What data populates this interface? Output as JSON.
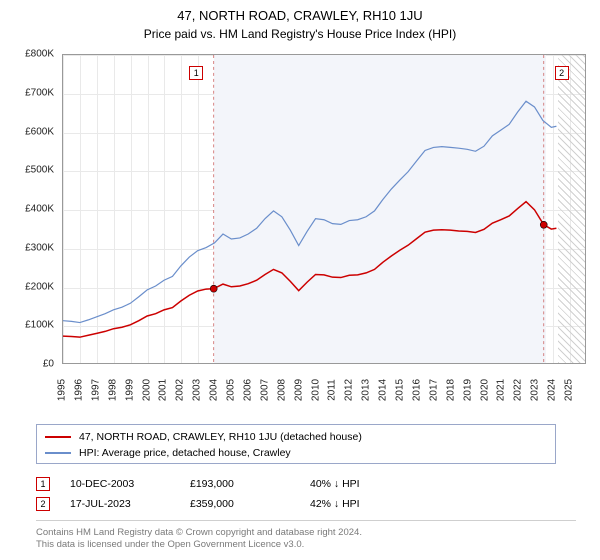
{
  "title_line1": "47, NORTH ROAD, CRAWLEY, RH10 1JU",
  "title_line2": "Price paid vs. HM Land Registry's House Price Index (HPI)",
  "chart": {
    "type": "line",
    "background_color": "#ffffff",
    "shaded_band_color": "#f3f5fa",
    "grid_color": "#e9e9e9",
    "border_color": "#999999",
    "xlim": [
      1995,
      2026
    ],
    "ylim": [
      0,
      800000
    ],
    "ytick_step": 100000,
    "ylabels": [
      "£0",
      "£100K",
      "£200K",
      "£300K",
      "£400K",
      "£500K",
      "£600K",
      "£700K",
      "£800K"
    ],
    "xlabels": [
      "1995",
      "1996",
      "1997",
      "1998",
      "1999",
      "2000",
      "2001",
      "2002",
      "2003",
      "2004",
      "2005",
      "2006",
      "2007",
      "2008",
      "2009",
      "2010",
      "2011",
      "2012",
      "2013",
      "2014",
      "2015",
      "2016",
      "2017",
      "2018",
      "2019",
      "2020",
      "2021",
      "2022",
      "2023",
      "2024",
      "2025"
    ],
    "shaded_band": {
      "start": 2003.95,
      "end": 2023.55
    },
    "hatched_range": {
      "start": 2024.3,
      "end": 2026
    },
    "series": [
      {
        "name": "HPI: Average price, detached house, Crawley",
        "color": "#6a8ecb",
        "width": 1.2,
        "data": [
          [
            1995,
            110000
          ],
          [
            1995.5,
            108000
          ],
          [
            1996,
            105000
          ],
          [
            1996.5,
            112000
          ],
          [
            1997,
            120000
          ],
          [
            1997.5,
            128000
          ],
          [
            1998,
            138000
          ],
          [
            1998.5,
            145000
          ],
          [
            1999,
            155000
          ],
          [
            1999.5,
            172000
          ],
          [
            2000,
            190000
          ],
          [
            2000.5,
            200000
          ],
          [
            2001,
            215000
          ],
          [
            2001.5,
            225000
          ],
          [
            2002,
            252000
          ],
          [
            2002.5,
            275000
          ],
          [
            2003,
            292000
          ],
          [
            2003.5,
            300000
          ],
          [
            2004,
            312000
          ],
          [
            2004.5,
            335000
          ],
          [
            2005,
            322000
          ],
          [
            2005.5,
            325000
          ],
          [
            2006,
            335000
          ],
          [
            2006.5,
            350000
          ],
          [
            2007,
            375000
          ],
          [
            2007.5,
            395000
          ],
          [
            2008,
            380000
          ],
          [
            2008.5,
            345000
          ],
          [
            2009,
            305000
          ],
          [
            2009.5,
            342000
          ],
          [
            2010,
            375000
          ],
          [
            2010.5,
            372000
          ],
          [
            2011,
            362000
          ],
          [
            2011.5,
            360000
          ],
          [
            2012,
            370000
          ],
          [
            2012.5,
            372000
          ],
          [
            2013,
            380000
          ],
          [
            2013.5,
            395000
          ],
          [
            2014,
            425000
          ],
          [
            2014.5,
            452000
          ],
          [
            2015,
            475000
          ],
          [
            2015.5,
            497000
          ],
          [
            2016,
            525000
          ],
          [
            2016.5,
            552000
          ],
          [
            2017,
            560000
          ],
          [
            2017.5,
            562000
          ],
          [
            2018,
            560000
          ],
          [
            2018.5,
            558000
          ],
          [
            2019,
            555000
          ],
          [
            2019.5,
            550000
          ],
          [
            2020,
            563000
          ],
          [
            2020.5,
            590000
          ],
          [
            2021,
            605000
          ],
          [
            2021.5,
            620000
          ],
          [
            2022,
            652000
          ],
          [
            2022.5,
            680000
          ],
          [
            2023,
            665000
          ],
          [
            2023.5,
            630000
          ],
          [
            2024,
            612000
          ],
          [
            2024.3,
            615000
          ]
        ]
      },
      {
        "name": "47, NORTH ROAD, CRAWLEY, RH10 1JU (detached house)",
        "color": "#cc0000",
        "width": 1.5,
        "data": [
          [
            1995,
            70000
          ],
          [
            1995.5,
            69000
          ],
          [
            1996,
            67000
          ],
          [
            1996.5,
            72000
          ],
          [
            1997,
            77000
          ],
          [
            1997.5,
            82000
          ],
          [
            1998,
            89000
          ],
          [
            1998.5,
            93000
          ],
          [
            1999,
            99000
          ],
          [
            1999.5,
            110000
          ],
          [
            2000,
            122000
          ],
          [
            2000.5,
            128000
          ],
          [
            2001,
            138000
          ],
          [
            2001.5,
            144000
          ],
          [
            2002,
            161000
          ],
          [
            2002.5,
            176000
          ],
          [
            2003,
            187000
          ],
          [
            2003.5,
            192000
          ],
          [
            2003.95,
            193000
          ],
          [
            2004.5,
            205000
          ],
          [
            2005,
            198000
          ],
          [
            2005.5,
            200000
          ],
          [
            2006,
            206000
          ],
          [
            2006.5,
            215000
          ],
          [
            2007,
            230000
          ],
          [
            2007.5,
            243000
          ],
          [
            2008,
            234000
          ],
          [
            2008.5,
            212000
          ],
          [
            2009,
            188000
          ],
          [
            2009.5,
            210000
          ],
          [
            2010,
            230000
          ],
          [
            2010.5,
            229000
          ],
          [
            2011,
            223000
          ],
          [
            2011.5,
            222000
          ],
          [
            2012,
            228000
          ],
          [
            2012.5,
            229000
          ],
          [
            2013,
            234000
          ],
          [
            2013.5,
            243000
          ],
          [
            2014,
            262000
          ],
          [
            2014.5,
            278000
          ],
          [
            2015,
            293000
          ],
          [
            2015.5,
            306000
          ],
          [
            2016,
            323000
          ],
          [
            2016.5,
            340000
          ],
          [
            2017,
            345000
          ],
          [
            2017.5,
            346000
          ],
          [
            2018,
            345000
          ],
          [
            2018.5,
            343000
          ],
          [
            2019,
            342000
          ],
          [
            2019.5,
            339000
          ],
          [
            2020,
            347000
          ],
          [
            2020.5,
            363000
          ],
          [
            2021,
            372000
          ],
          [
            2021.5,
            382000
          ],
          [
            2022,
            401000
          ],
          [
            2022.5,
            419000
          ],
          [
            2023,
            398000
          ],
          [
            2023.55,
            359000
          ],
          [
            2024,
            348000
          ],
          [
            2024.3,
            350000
          ]
        ]
      }
    ],
    "markers": [
      {
        "label": "1",
        "x": 2003.95,
        "y": 193000,
        "box_color": "#cc0000",
        "label_side": "left"
      },
      {
        "label": "2",
        "x": 2023.55,
        "y": 359000,
        "box_color": "#cc0000",
        "label_side": "right"
      }
    ]
  },
  "legend": {
    "series1_label": "47, NORTH ROAD, CRAWLEY, RH10 1JU (detached house)",
    "series2_label": "HPI: Average price, detached house, Crawley"
  },
  "events": [
    {
      "num": "1",
      "date": "10-DEC-2003",
      "price": "£193,000",
      "diff": "40% ↓ HPI"
    },
    {
      "num": "2",
      "date": "17-JUL-2023",
      "price": "£359,000",
      "diff": "42% ↓ HPI"
    }
  ],
  "footer": {
    "line1": "Contains HM Land Registry data © Crown copyright and database right 2024.",
    "line2": "This data is licensed under the Open Government Licence v3.0."
  },
  "colors": {
    "red": "#cc0000",
    "blue": "#6a8ecb",
    "footer_text": "#7a7a7a"
  },
  "fonts": {
    "title_size": 13,
    "subtitle_size": 12,
    "axis_size": 10,
    "legend_size": 10.5
  }
}
